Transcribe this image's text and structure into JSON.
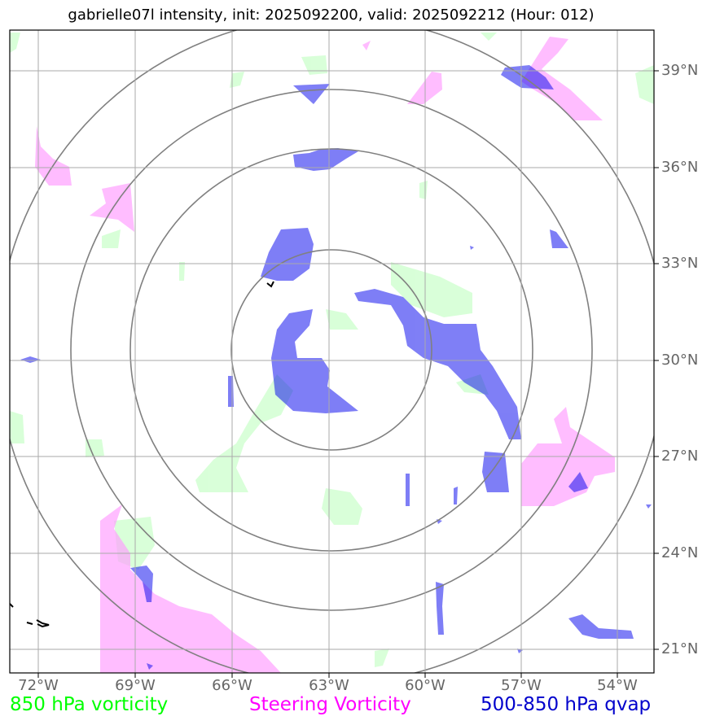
{
  "title": "gabrielle07l intensity, init: 2025092200, valid: 2025092212 (Hour: 012)",
  "lon_labels": [
    "72°W",
    "69°W",
    "66°W",
    "63°W",
    "60°W",
    "57°W",
    "54°W"
  ],
  "lat_labels": [
    "39°N",
    "36°N",
    "33°N",
    "30°N",
    "27°N",
    "24°N",
    "21°N"
  ],
  "legend": {
    "vort850": "850 hPa vorticity",
    "steering": "Steering Vorticity",
    "qvap": "500-850 hPa qvap"
  },
  "colors": {
    "vort850": "#00ff00",
    "steering": "#ff00ff",
    "qvap": "#0000cc",
    "grid": "#aaaaaa",
    "rings": "#808080",
    "coast": "#000000"
  }
}
